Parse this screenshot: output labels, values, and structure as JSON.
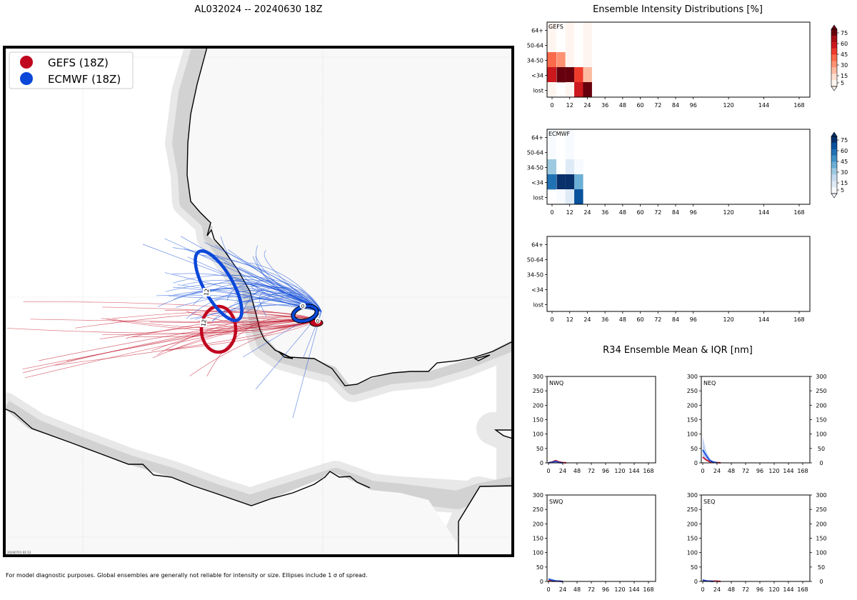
{
  "figure": {
    "storm_title": "AL032024 -- 20240630 18Z",
    "footnote": "For model diagnostic purposes. Global ensembles are generally not reliable for intensity or size. Ellipses include 1 σ of spread.",
    "map_stamp": "20240701 02:13"
  },
  "map": {
    "legend": [
      {
        "label": "GEFS (18Z)",
        "color": "#c0061e"
      },
      {
        "label": "ECMWF (18Z)",
        "color": "#0a47d9"
      }
    ],
    "gefs_color": "#c0061e",
    "ecmwf_color": "#0a47d9",
    "ellipse_labels": {
      "gefs_12": "12",
      "ecmwf_12": "12",
      "gefs_0": "0",
      "ecmwf_0": "0"
    }
  },
  "intensity": {
    "title": "Ensemble Intensity Distributions [%]",
    "y_categories": [
      "64+",
      "50-64",
      "34-50",
      "<34",
      "lost"
    ],
    "x_ticks": [
      0,
      12,
      24,
      36,
      48,
      60,
      72,
      84,
      96,
      120,
      144,
      168
    ],
    "colorbar_ticks": [
      5,
      15,
      30,
      45,
      60,
      75
    ],
    "panels": [
      {
        "label": "GEFS",
        "colormap": "Reds",
        "cells": [
          {
            "hour": 0,
            "cat": "64+",
            "pct": 3
          },
          {
            "hour": 12,
            "cat": "64+",
            "pct": 3
          },
          {
            "hour": 24,
            "cat": "64+",
            "pct": 3
          },
          {
            "hour": 0,
            "cat": "50-64",
            "pct": 3
          },
          {
            "hour": 12,
            "cat": "50-64",
            "pct": 3
          },
          {
            "hour": 24,
            "cat": "50-64",
            "pct": 3
          },
          {
            "hour": 0,
            "cat": "34-50",
            "pct": 40
          },
          {
            "hour": 6,
            "cat": "34-50",
            "pct": 25
          },
          {
            "hour": 12,
            "cat": "34-50",
            "pct": 3
          },
          {
            "hour": 24,
            "cat": "34-50",
            "pct": 3
          },
          {
            "hour": 0,
            "cat": "<34",
            "pct": 57
          },
          {
            "hour": 6,
            "cat": "<34",
            "pct": 80
          },
          {
            "hour": 12,
            "cat": "<34",
            "pct": 80
          },
          {
            "hour": 18,
            "cat": "<34",
            "pct": 45
          },
          {
            "hour": 24,
            "cat": "<34",
            "pct": 15
          },
          {
            "hour": 0,
            "cat": "lost",
            "pct": 3
          },
          {
            "hour": 12,
            "cat": "lost",
            "pct": 3
          },
          {
            "hour": 18,
            "cat": "lost",
            "pct": 55
          },
          {
            "hour": 24,
            "cat": "lost",
            "pct": 80
          }
        ]
      },
      {
        "label": "ECMWF",
        "colormap": "Blues",
        "cells": [
          {
            "hour": 0,
            "cat": "64+",
            "pct": 3
          },
          {
            "hour": 12,
            "cat": "64+",
            "pct": 3
          },
          {
            "hour": 0,
            "cat": "50-64",
            "pct": 3
          },
          {
            "hour": 12,
            "cat": "50-64",
            "pct": 3
          },
          {
            "hour": 0,
            "cat": "34-50",
            "pct": 25
          },
          {
            "hour": 12,
            "cat": "34-50",
            "pct": 12
          },
          {
            "hour": 18,
            "cat": "34-50",
            "pct": 3
          },
          {
            "hour": 0,
            "cat": "<34",
            "pct": 60
          },
          {
            "hour": 6,
            "cat": "<34",
            "pct": 80
          },
          {
            "hour": 12,
            "cat": "<34",
            "pct": 80
          },
          {
            "hour": 18,
            "cat": "<34",
            "pct": 40
          },
          {
            "hour": 6,
            "cat": "lost",
            "pct": 3
          },
          {
            "hour": 12,
            "cat": "lost",
            "pct": 8
          },
          {
            "hour": 18,
            "cat": "lost",
            "pct": 65
          }
        ]
      },
      {
        "label": "",
        "colormap": "none",
        "cells": []
      }
    ]
  },
  "r34": {
    "title": "R34 Ensemble Mean & IQR [nm]",
    "x_ticks": [
      0,
      24,
      48,
      72,
      96,
      120,
      144,
      168
    ],
    "y_ticks": [
      0,
      50,
      100,
      150,
      200,
      250,
      300
    ],
    "ylim": [
      0,
      300
    ],
    "xlim": [
      0,
      168
    ],
    "panels": [
      {
        "label": "NWQ",
        "gefs": [
          [
            0,
            0
          ],
          [
            6,
            3
          ],
          [
            12,
            8
          ],
          [
            18,
            3
          ],
          [
            24,
            1
          ],
          [
            30,
            0
          ]
        ],
        "ecmwf": [
          [
            0,
            0
          ],
          [
            6,
            2
          ],
          [
            12,
            5
          ],
          [
            18,
            1
          ],
          [
            24,
            0
          ]
        ]
      },
      {
        "label": "NEQ",
        "gefs": [
          [
            0,
            20
          ],
          [
            6,
            10
          ],
          [
            12,
            4
          ],
          [
            18,
            2
          ],
          [
            24,
            1
          ],
          [
            30,
            0
          ]
        ],
        "ecmwf": [
          [
            0,
            45
          ],
          [
            6,
            25
          ],
          [
            12,
            8
          ],
          [
            18,
            3
          ],
          [
            24,
            0
          ]
        ],
        "ecmwf_iqr_top": [
          [
            0,
            90
          ],
          [
            6,
            40
          ],
          [
            12,
            15
          ],
          [
            18,
            5
          ],
          [
            24,
            0
          ]
        ]
      },
      {
        "label": "SWQ",
        "gefs": [
          [
            0,
            3
          ],
          [
            6,
            1
          ],
          [
            12,
            1
          ],
          [
            18,
            1
          ],
          [
            24,
            0
          ]
        ],
        "ecmwf": [
          [
            0,
            8
          ],
          [
            6,
            5
          ],
          [
            12,
            2
          ],
          [
            18,
            1
          ],
          [
            24,
            0
          ]
        ]
      },
      {
        "label": "SEQ",
        "gefs": [
          [
            0,
            4
          ],
          [
            6,
            2
          ],
          [
            12,
            1
          ],
          [
            18,
            1
          ],
          [
            24,
            1
          ],
          [
            30,
            0
          ]
        ],
        "ecmwf": [
          [
            0,
            5
          ],
          [
            6,
            2
          ],
          [
            12,
            1
          ],
          [
            18,
            0
          ]
        ]
      }
    ]
  }
}
